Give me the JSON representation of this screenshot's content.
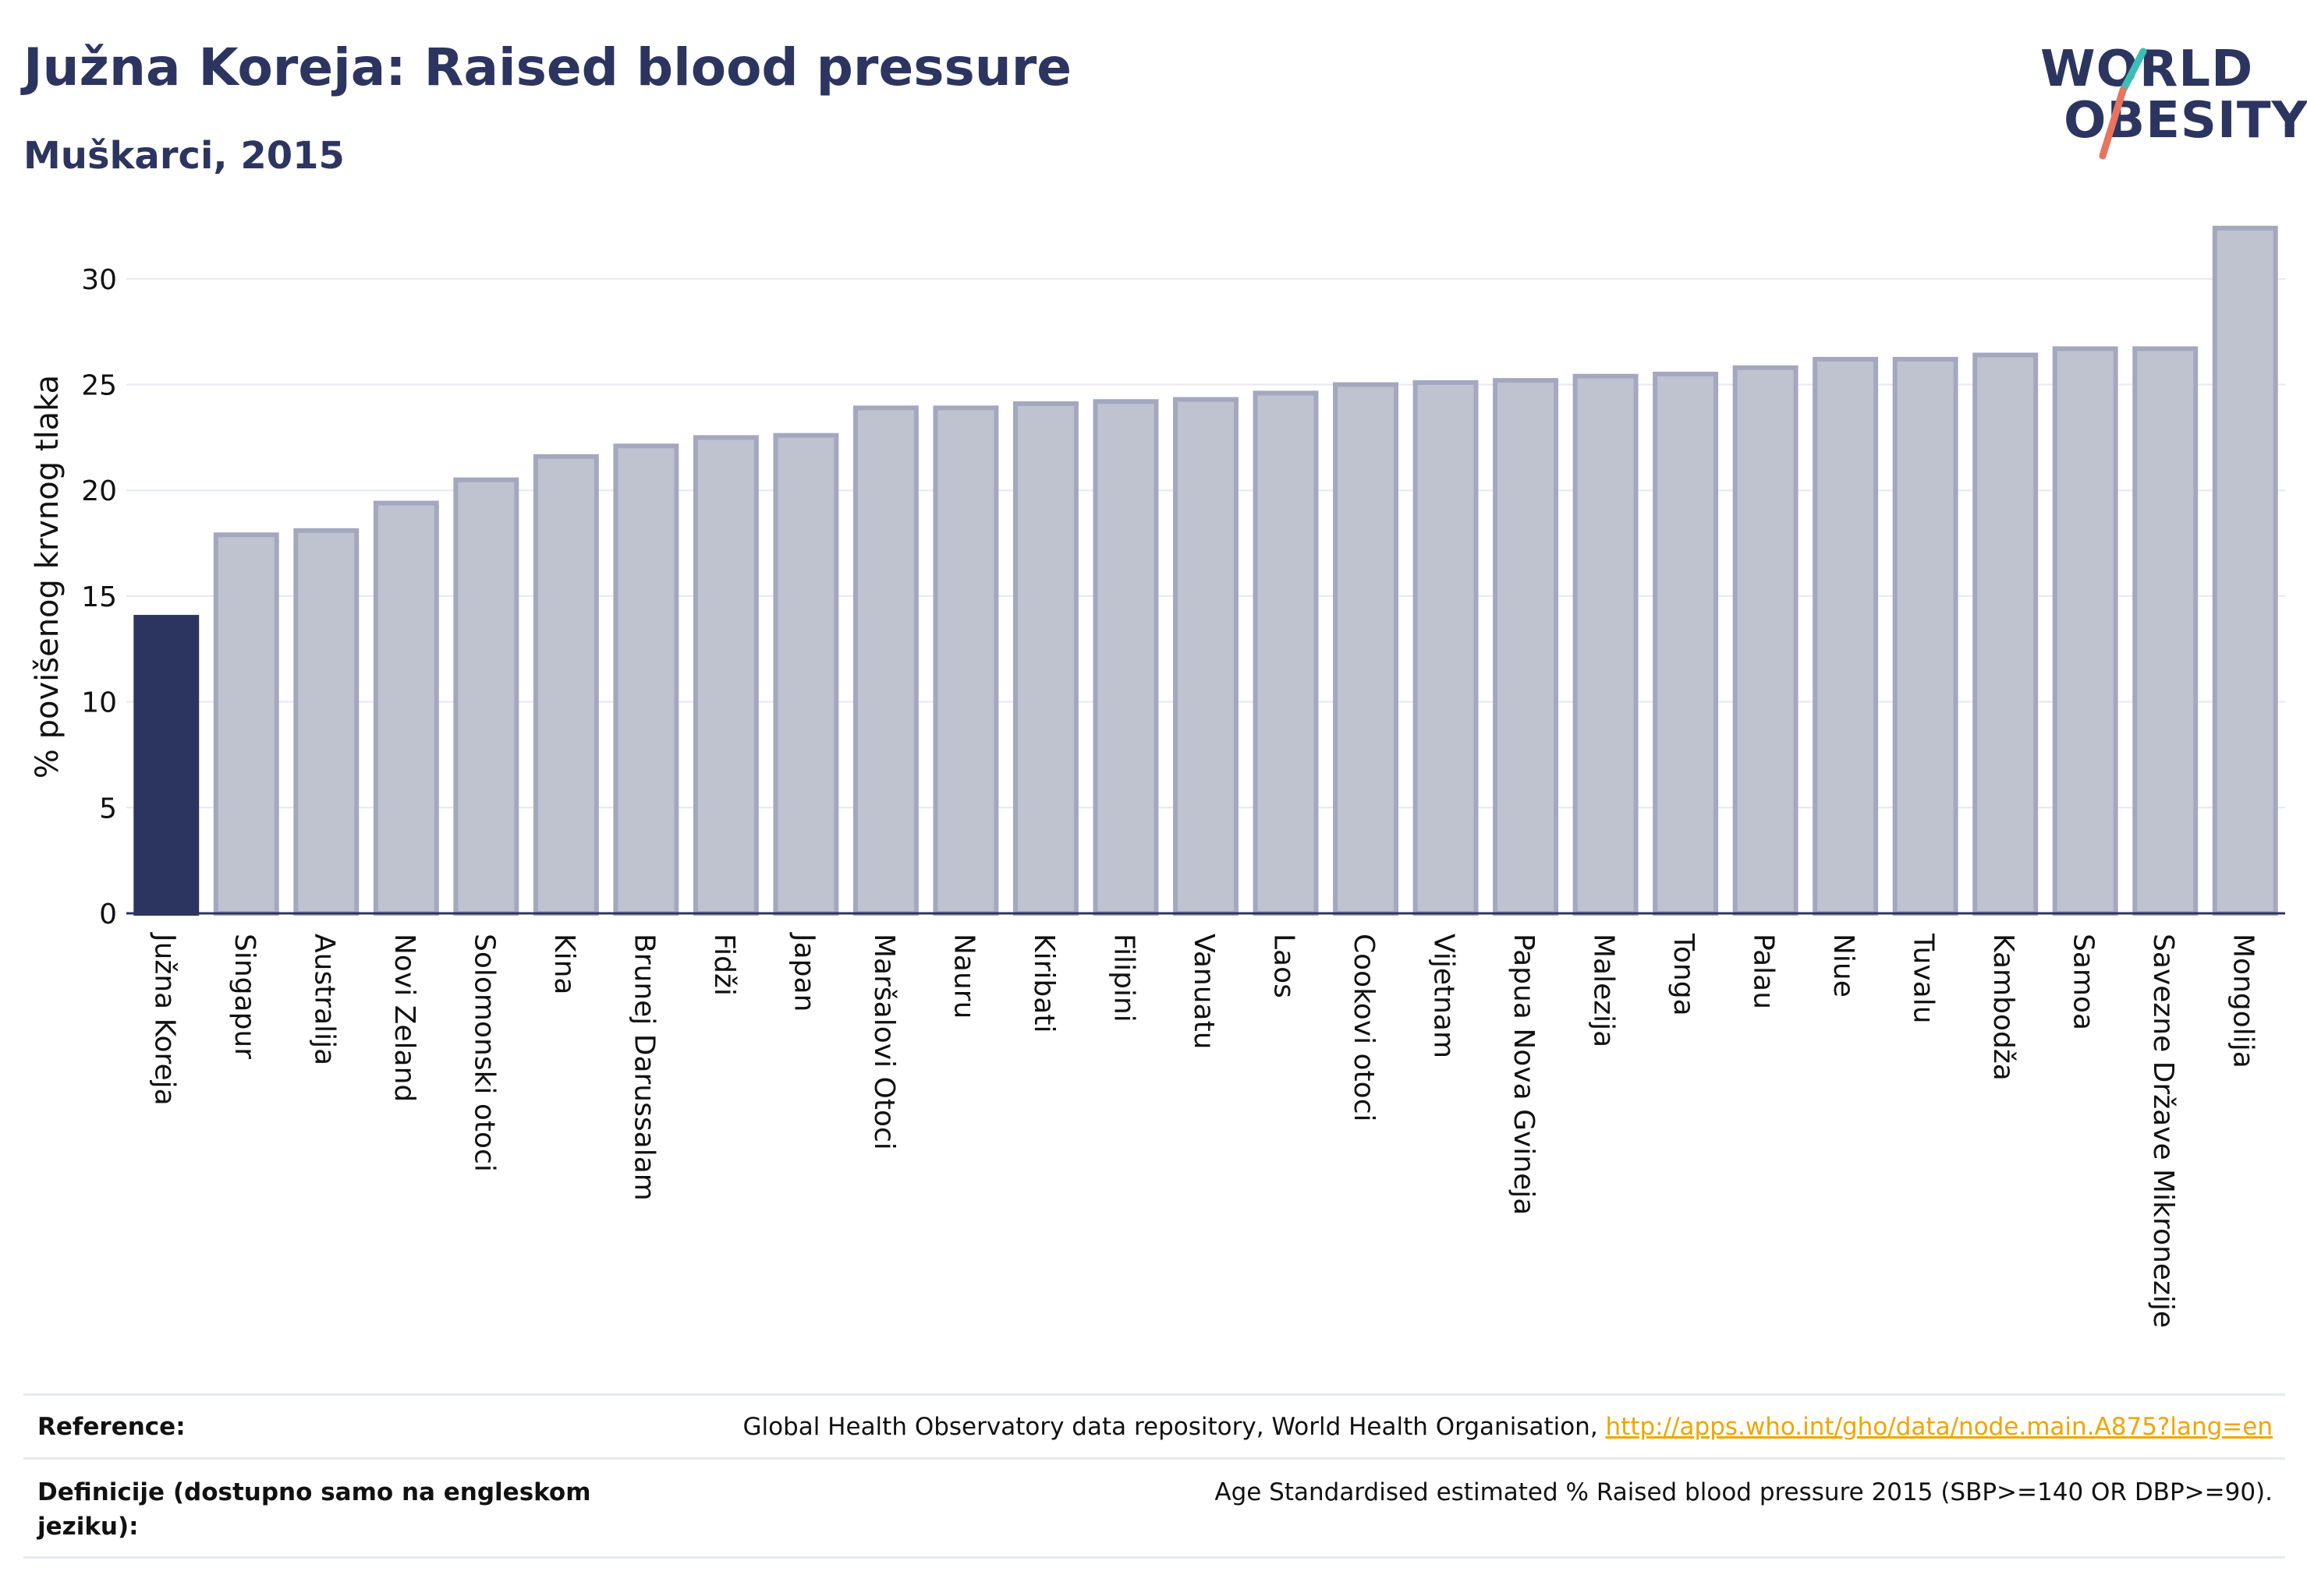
{
  "header": {
    "title": "Južna Koreja: Raised blood pressure",
    "subtitle": "Muškarci, 2015"
  },
  "logo": {
    "line1": "WORLD",
    "line2": "OBESITY",
    "accent_teal": "#3bbfb5",
    "accent_coral": "#e8735e"
  },
  "colors": {
    "highlight_bar": "#2c3560",
    "other_bar_fill": "#bfc2cf",
    "other_bar_stroke": "#a3a8bf",
    "grid": "#e6e8ef",
    "axis_text": "#111111"
  },
  "chart_data": {
    "type": "bar",
    "ylabel": "% povišenog krvnog tlaka",
    "xlabel": "",
    "ylim": [
      0,
      32.5
    ],
    "yticks": [
      0,
      5,
      10,
      15,
      20,
      25,
      30
    ],
    "highlight": "Južna Koreja",
    "categories": [
      "Južna Koreja",
      "Singapur",
      "Australija",
      "Novi Zeland",
      "Solomonski otoci",
      "Kina",
      "Brunej Darussalam",
      "Fidži",
      "Japan",
      "Maršalovi Otoci",
      "Nauru",
      "Kiribati",
      "Filipini",
      "Vanuatu",
      "Laos",
      "Cookovi otoci",
      "Vijetnam",
      "Papua Nova Gvineja",
      "Malezija",
      "Tonga",
      "Palau",
      "Niue",
      "Tuvalu",
      "Kambodža",
      "Samoa",
      "Savezne Države Mikronezije",
      "Mongolija"
    ],
    "values": [
      14.0,
      17.9,
      18.1,
      19.4,
      20.5,
      21.6,
      22.1,
      22.5,
      22.6,
      23.9,
      23.9,
      24.1,
      24.2,
      24.3,
      24.6,
      25.0,
      25.1,
      25.2,
      25.4,
      25.5,
      25.8,
      26.2,
      26.2,
      26.4,
      26.7,
      26.7,
      32.4
    ]
  },
  "reference": {
    "label": "Reference:",
    "text": "Global Health Observatory data repository, World Health Organisation, ",
    "link": "http://apps.who.int/gho/data/node.main.A875?lang=en"
  },
  "definition": {
    "label": "Definicije (dostupno samo na engleskom jeziku):",
    "text": "Age Standardised estimated % Raised blood pressure 2015 (SBP>=140 OR DBP>=90)."
  }
}
